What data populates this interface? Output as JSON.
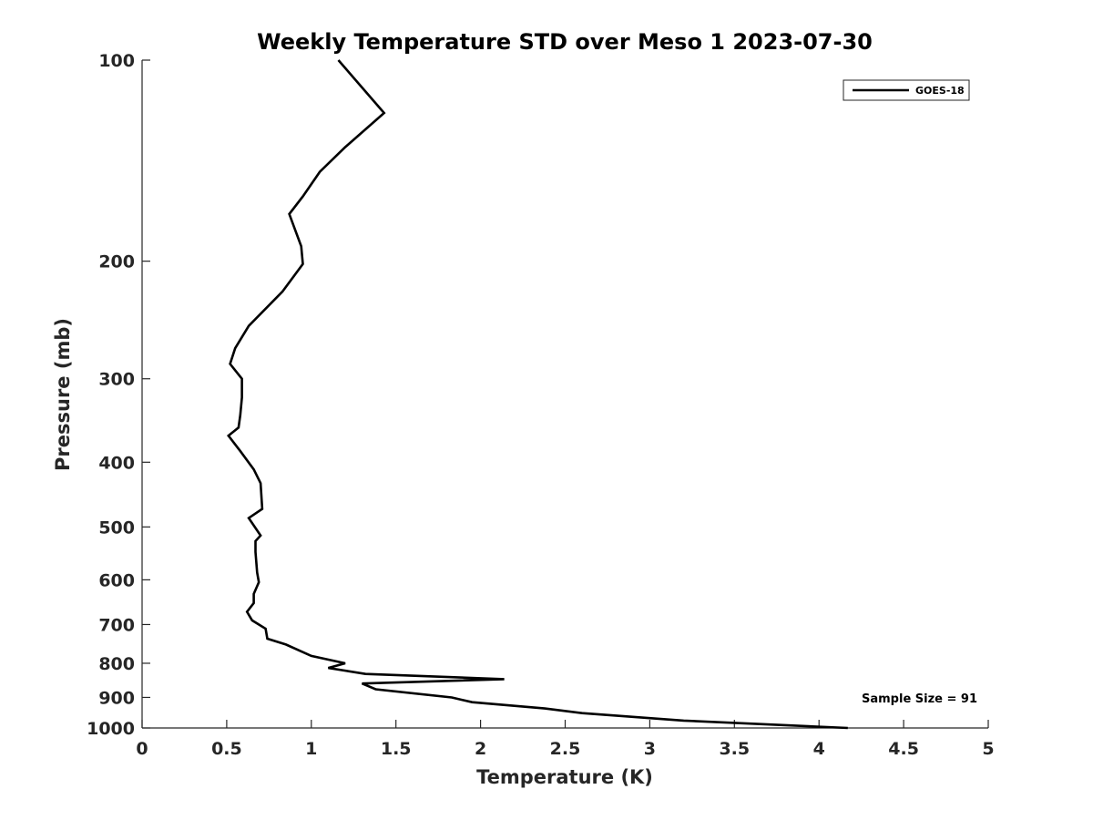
{
  "chart_data": {
    "type": "line",
    "title": "Weekly Temperature STD over Meso 1 2023-07-30",
    "xlabel": "Temperature (K)",
    "ylabel": "Pressure (mb)",
    "xlim": [
      0,
      5
    ],
    "ylim": [
      100,
      1000
    ],
    "y_scale": "log",
    "y_reversed": true,
    "grid": false,
    "x_ticks": [
      0,
      0.5,
      1,
      1.5,
      2,
      2.5,
      3,
      3.5,
      4,
      4.5,
      5
    ],
    "x_tick_labels": [
      "0",
      "0.5",
      "1",
      "1.5",
      "2",
      "2.5",
      "3",
      "3.5",
      "4",
      "4.5",
      "5"
    ],
    "y_ticks": [
      100,
      200,
      300,
      400,
      500,
      600,
      700,
      800,
      900,
      1000
    ],
    "y_tick_labels": [
      "100",
      "200",
      "300",
      "400",
      "500",
      "600",
      "700",
      "800",
      "900",
      "1000"
    ],
    "legend_position": "top-right",
    "series": [
      {
        "name": "GOES-18",
        "color": "#000000",
        "x": [
          1.16,
          1.43,
          1.2,
          1.05,
          0.95,
          0.87,
          0.94,
          0.95,
          0.83,
          0.63,
          0.55,
          0.52,
          0.59,
          0.59,
          0.58,
          0.57,
          0.51,
          0.58,
          0.66,
          0.7,
          0.71,
          0.63,
          0.7,
          0.67,
          0.67,
          0.68,
          0.69,
          0.66,
          0.66,
          0.62,
          0.65,
          0.73,
          0.74,
          0.85,
          1.0,
          1.2,
          1.1,
          1.32,
          2.14,
          1.3,
          1.38,
          1.83,
          1.95,
          2.38,
          2.6,
          3.2,
          4.17
        ],
        "y": [
          100,
          120,
          135,
          147,
          160,
          170,
          190,
          202,
          222,
          250,
          270,
          285,
          300,
          320,
          340,
          355,
          365,
          385,
          410,
          430,
          470,
          485,
          515,
          525,
          545,
          585,
          605,
          630,
          650,
          670,
          690,
          710,
          735,
          750,
          780,
          800,
          813,
          830,
          845,
          858,
          875,
          900,
          915,
          935,
          950,
          975,
          1000
        ]
      }
    ],
    "annotations": [
      {
        "text": "Sample Size = 91",
        "position": "bottom-right"
      }
    ]
  }
}
